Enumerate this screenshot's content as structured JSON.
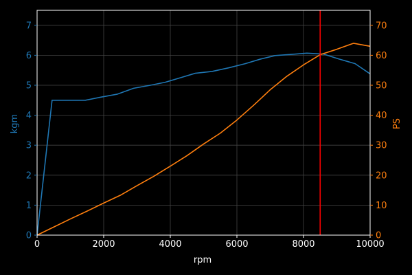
{
  "chart_data": {
    "type": "line",
    "xlabel": "rpm",
    "ylabel_left": "kgm",
    "ylabel_right": "PS",
    "xlim": [
      0,
      10000
    ],
    "ylim_left": [
      0,
      7.5
    ],
    "ylim_right": [
      0,
      75
    ],
    "x_ticks": [
      "0",
      "2000",
      "4000",
      "6000",
      "8000",
      "10000"
    ],
    "y_left_ticks": [
      "0",
      "1",
      "2",
      "3",
      "4",
      "5",
      "6",
      "7"
    ],
    "y_right_ticks": [
      "0",
      "10",
      "20",
      "30",
      "40",
      "50",
      "60",
      "70"
    ],
    "grid": true,
    "vertical_marker": {
      "x": 8500,
      "color": "#ff0000"
    },
    "series": [
      {
        "axis": "left",
        "color": "#1f77b4",
        "points": [
          [
            0,
            0
          ],
          [
            450,
            4.5
          ],
          [
            1000,
            4.5
          ],
          [
            1450,
            4.5
          ],
          [
            1900,
            4.6
          ],
          [
            2400,
            4.7
          ],
          [
            2900,
            4.9
          ],
          [
            3400,
            5.0
          ],
          [
            3850,
            5.1
          ],
          [
            4300,
            5.25
          ],
          [
            4750,
            5.4
          ],
          [
            5250,
            5.46
          ],
          [
            5750,
            5.58
          ],
          [
            6250,
            5.72
          ],
          [
            6700,
            5.87
          ],
          [
            7150,
            5.99
          ],
          [
            7650,
            6.03
          ],
          [
            8100,
            6.07
          ],
          [
            8600,
            6.04
          ],
          [
            9050,
            5.88
          ],
          [
            9550,
            5.72
          ],
          [
            10000,
            5.38
          ]
        ]
      },
      {
        "axis": "right",
        "color": "#ff7f0e",
        "points": [
          [
            0,
            0
          ],
          [
            500,
            2.7
          ],
          [
            1000,
            5.4
          ],
          [
            1500,
            8.0
          ],
          [
            2000,
            10.7
          ],
          [
            2500,
            13.3
          ],
          [
            3000,
            16.5
          ],
          [
            3500,
            19.6
          ],
          [
            4000,
            23.0
          ],
          [
            4500,
            26.5
          ],
          [
            5000,
            30.4
          ],
          [
            5500,
            34.0
          ],
          [
            6000,
            38.4
          ],
          [
            6500,
            43.3
          ],
          [
            7000,
            48.5
          ],
          [
            7500,
            53.0
          ],
          [
            8000,
            56.8
          ],
          [
            8500,
            60.2
          ],
          [
            9000,
            62.0
          ],
          [
            9500,
            64.0
          ],
          [
            10000,
            63.0
          ]
        ]
      }
    ]
  }
}
